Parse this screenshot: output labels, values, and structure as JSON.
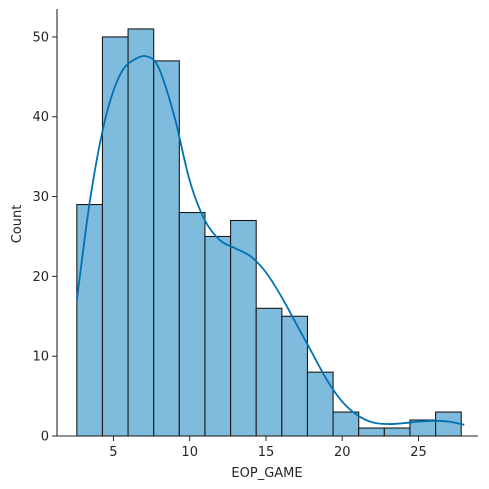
{
  "chart_data": {
    "type": "bar",
    "subtype": "histogram_with_kde",
    "title": "",
    "xlabel": "EOP_GAME",
    "ylabel": "Count",
    "xlim": [
      1.3,
      28.9
    ],
    "ylim": [
      0,
      53.5
    ],
    "x_ticks": [
      5,
      10,
      15,
      20,
      25
    ],
    "y_ticks": [
      0,
      10,
      20,
      30,
      40,
      50
    ],
    "bin_start": 2.6,
    "bin_width": 1.68,
    "counts": [
      29,
      50,
      51,
      47,
      28,
      25,
      27,
      16,
      15,
      8,
      3,
      1,
      1,
      2,
      3
    ],
    "kde": {
      "x": [
        2.6,
        3.5,
        4.5,
        5.5,
        6.5,
        7.3,
        8.0,
        9.0,
        10.0,
        11.0,
        12.0,
        13.0,
        14.0,
        15.0,
        16.0,
        17.0,
        18.0,
        19.0,
        20.0,
        21.0,
        22.0,
        23.0,
        24.0,
        25.0,
        26.0,
        27.0,
        28.0
      ],
      "y": [
        17,
        30,
        40,
        45.5,
        47.3,
        47.5,
        46,
        40,
        32,
        27,
        24.5,
        23.5,
        22.5,
        20.5,
        17.5,
        14,
        10.5,
        7,
        4.3,
        2.6,
        1.7,
        1.5,
        1.6,
        1.8,
        1.9,
        1.8,
        1.4
      ]
    },
    "bar_fill": "#7fbbdd",
    "bar_edge": "#1a1a1a",
    "line_color": "#0072b2",
    "grid": false,
    "legend": false
  }
}
